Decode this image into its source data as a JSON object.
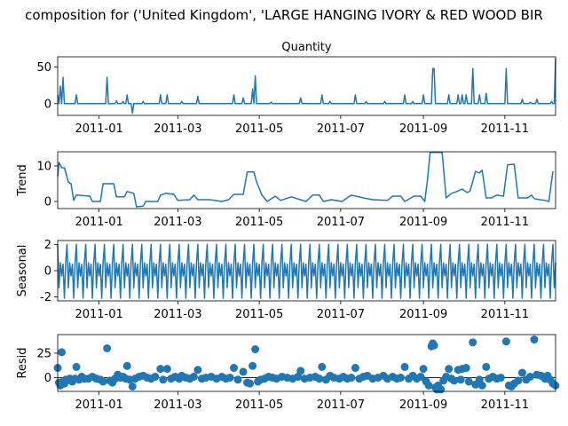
{
  "figure_title": "composition for ('United Kingdom', 'LARGE HANGING IVORY & RED WOOD BIR",
  "colors": {
    "series": "#1f77b4",
    "axis": "#000000",
    "resid_zero": "#000000"
  },
  "chart_data": [
    {
      "type": "line",
      "panel": "observed",
      "title": "Quantity",
      "ylabel": "",
      "xlim": [
        "2010-12-01",
        "2011-12-09"
      ],
      "ylim": [
        -16,
        64
      ],
      "yticks": [
        0,
        50
      ],
      "xticks": [
        "2011-01",
        "2011-03",
        "2011-05",
        "2011-07",
        "2011-09",
        "2011-11"
      ],
      "spikes": [
        [
          "2010-12-01",
          12
        ],
        [
          "2010-12-03",
          24
        ],
        [
          "2010-12-05",
          36
        ],
        [
          "2010-12-15",
          12
        ],
        [
          "2011-01-07",
          36
        ],
        [
          "2011-01-14",
          4
        ],
        [
          "2011-01-19",
          3
        ],
        [
          "2011-01-22",
          12
        ],
        [
          "2011-01-26",
          -13
        ],
        [
          "2011-02-03",
          3
        ],
        [
          "2011-02-16",
          12
        ],
        [
          "2011-02-21",
          12
        ],
        [
          "2011-03-04",
          3
        ],
        [
          "2011-03-16",
          10
        ],
        [
          "2011-04-12",
          12
        ],
        [
          "2011-04-19",
          8
        ],
        [
          "2011-04-26",
          20
        ],
        [
          "2011-04-28",
          38
        ],
        [
          "2011-05-10",
          2
        ],
        [
          "2011-06-01",
          8
        ],
        [
          "2011-06-17",
          12
        ],
        [
          "2011-06-23",
          3
        ],
        [
          "2011-07-12",
          12
        ],
        [
          "2011-07-20",
          3
        ],
        [
          "2011-08-03",
          3
        ],
        [
          "2011-08-18",
          12
        ],
        [
          "2011-08-24",
          3
        ],
        [
          "2011-09-01",
          12
        ],
        [
          "2011-09-08",
          48
        ],
        [
          "2011-09-09",
          48
        ],
        [
          "2011-09-20",
          12
        ],
        [
          "2011-09-27",
          12
        ],
        [
          "2011-09-30",
          12
        ],
        [
          "2011-10-03",
          12
        ],
        [
          "2011-10-08",
          48
        ],
        [
          "2011-10-13",
          12
        ],
        [
          "2011-10-18",
          14
        ],
        [
          "2011-11-02",
          48
        ],
        [
          "2011-11-14",
          6
        ],
        [
          "2011-11-20",
          2
        ],
        [
          "2011-11-25",
          6
        ],
        [
          "2011-12-06",
          3
        ],
        [
          "2011-12-09",
          62
        ]
      ]
    },
    {
      "type": "line",
      "panel": "trend",
      "title": "",
      "ylabel": "Trend",
      "xlim": [
        "2010-12-01",
        "2011-12-09"
      ],
      "ylim": [
        -2,
        14
      ],
      "yticks": [
        0,
        10
      ],
      "xticks": [
        "2011-01",
        "2011-03",
        "2011-05",
        "2011-07",
        "2011-09",
        "2011-11"
      ],
      "points": [
        [
          "2010-12-01",
          7
        ],
        [
          "2010-12-02",
          11
        ],
        [
          "2010-12-04",
          9.5
        ],
        [
          "2010-12-06",
          9.5
        ],
        [
          "2010-12-09",
          5.5
        ],
        [
          "2010-12-11",
          5
        ],
        [
          "2010-12-13",
          0.3
        ],
        [
          "2010-12-15",
          1.8
        ],
        [
          "2010-12-25",
          1.5
        ],
        [
          "2010-12-27",
          0
        ],
        [
          "2011-01-02",
          0
        ],
        [
          "2011-01-04",
          5
        ],
        [
          "2011-01-12",
          5
        ],
        [
          "2011-01-14",
          1.3
        ],
        [
          "2011-01-20",
          1.3
        ],
        [
          "2011-01-22",
          2.8
        ],
        [
          "2011-01-27",
          2.3
        ],
        [
          "2011-01-29",
          -1.5
        ],
        [
          "2011-02-03",
          -1.3
        ],
        [
          "2011-02-05",
          0
        ],
        [
          "2011-02-14",
          0
        ],
        [
          "2011-02-16",
          1.8
        ],
        [
          "2011-02-20",
          2.3
        ],
        [
          "2011-02-26",
          2
        ],
        [
          "2011-03-01",
          0.3
        ],
        [
          "2011-03-10",
          0.5
        ],
        [
          "2011-03-13",
          1.8
        ],
        [
          "2011-03-16",
          0.5
        ],
        [
          "2011-03-25",
          0.5
        ],
        [
          "2011-04-03",
          0
        ],
        [
          "2011-04-08",
          0.5
        ],
        [
          "2011-04-12",
          2
        ],
        [
          "2011-04-19",
          2
        ],
        [
          "2011-04-22",
          8.3
        ],
        [
          "2011-04-27",
          8.3
        ],
        [
          "2011-04-29",
          5.5
        ],
        [
          "2011-05-03",
          1.8
        ],
        [
          "2011-05-07",
          0
        ],
        [
          "2011-05-13",
          1.5
        ],
        [
          "2011-05-17",
          0.3
        ],
        [
          "2011-05-25",
          1.3
        ],
        [
          "2011-06-05",
          0
        ],
        [
          "2011-06-10",
          1.8
        ],
        [
          "2011-06-15",
          1.8
        ],
        [
          "2011-06-18",
          0
        ],
        [
          "2011-06-24",
          0.5
        ],
        [
          "2011-07-02",
          0
        ],
        [
          "2011-07-09",
          1.8
        ],
        [
          "2011-07-18",
          1
        ],
        [
          "2011-07-25",
          0.5
        ],
        [
          "2011-08-05",
          0.3
        ],
        [
          "2011-08-09",
          1.5
        ],
        [
          "2011-08-15",
          1.5
        ],
        [
          "2011-08-18",
          0
        ],
        [
          "2011-08-25",
          1.5
        ],
        [
          "2011-08-30",
          1.5
        ],
        [
          "2011-09-02",
          0
        ],
        [
          "2011-09-04",
          6
        ],
        [
          "2011-09-06",
          13.8
        ],
        [
          "2011-09-15",
          13.8
        ],
        [
          "2011-09-18",
          1
        ],
        [
          "2011-09-22",
          2.3
        ],
        [
          "2011-09-26",
          2.8
        ],
        [
          "2011-09-30",
          3.5
        ],
        [
          "2011-10-04",
          2.5
        ],
        [
          "2011-10-06",
          3
        ],
        [
          "2011-10-10",
          8.5
        ],
        [
          "2011-10-13",
          8
        ],
        [
          "2011-10-15",
          8.8
        ],
        [
          "2011-10-18",
          1
        ],
        [
          "2011-10-22",
          1
        ],
        [
          "2011-10-26",
          1.8
        ],
        [
          "2011-10-31",
          1.5
        ],
        [
          "2011-11-03",
          10.3
        ],
        [
          "2011-11-08",
          10.5
        ],
        [
          "2011-11-11",
          1
        ],
        [
          "2011-11-18",
          1
        ],
        [
          "2011-11-21",
          1.8
        ],
        [
          "2011-11-23",
          0.8
        ],
        [
          "2011-11-27",
          0.5
        ],
        [
          "2011-12-01",
          0.3
        ],
        [
          "2011-12-04",
          0
        ],
        [
          "2011-12-07",
          8.5
        ]
      ]
    },
    {
      "type": "line",
      "panel": "seasonal",
      "title": "",
      "ylabel": "Seasonal",
      "xlim": [
        "2010-12-01",
        "2011-12-09"
      ],
      "ylim": [
        -2.3,
        2.3
      ],
      "yticks": [
        -2,
        0,
        2
      ],
      "xticks": [
        "2011-01",
        "2011-03",
        "2011-05",
        "2011-07",
        "2011-09",
        "2011-11"
      ],
      "period_days": 7,
      "weekly_pattern": [
        2.0,
        -1.3,
        0.6,
        -0.4,
        0.5,
        -2.1,
        0.6
      ]
    },
    {
      "type": "scatter",
      "panel": "resid",
      "title": "",
      "ylabel": "Resid",
      "xlim": [
        "2010-12-01",
        "2011-12-09"
      ],
      "ylim": [
        -14,
        44
      ],
      "yticks": [
        0,
        25
      ],
      "xticks": [
        "2011-01",
        "2011-03",
        "2011-05",
        "2011-07",
        "2011-09",
        "2011-11"
      ],
      "points": [
        [
          "2010-12-01",
          10
        ],
        [
          "2010-12-02",
          -5
        ],
        [
          "2010-12-03",
          -8
        ],
        [
          "2010-12-04",
          26
        ],
        [
          "2010-12-05",
          -4
        ],
        [
          "2010-12-06",
          -6
        ],
        [
          "2010-12-07",
          -2
        ],
        [
          "2010-12-08",
          -3
        ],
        [
          "2010-12-10",
          -1
        ],
        [
          "2010-12-12",
          -4
        ],
        [
          "2010-12-14",
          -1
        ],
        [
          "2010-12-15",
          11
        ],
        [
          "2010-12-17",
          -2
        ],
        [
          "2010-12-19",
          1
        ],
        [
          "2010-12-21",
          -1
        ],
        [
          "2010-12-24",
          -1
        ],
        [
          "2010-12-27",
          1
        ],
        [
          "2010-12-30",
          -1
        ],
        [
          "2011-01-02",
          -2
        ],
        [
          "2011-01-04",
          -4
        ],
        [
          "2011-01-07",
          30
        ],
        [
          "2011-01-09",
          -3
        ],
        [
          "2011-01-11",
          -5
        ],
        [
          "2011-01-13",
          -1
        ],
        [
          "2011-01-15",
          3
        ],
        [
          "2011-01-17",
          0
        ],
        [
          "2011-01-19",
          1
        ],
        [
          "2011-01-21",
          -1
        ],
        [
          "2011-01-22",
          12
        ],
        [
          "2011-01-24",
          -2
        ],
        [
          "2011-01-26",
          -9
        ],
        [
          "2011-01-28",
          -1
        ],
        [
          "2011-01-31",
          1
        ],
        [
          "2011-02-03",
          2
        ],
        [
          "2011-02-06",
          0
        ],
        [
          "2011-02-09",
          -1
        ],
        [
          "2011-02-12",
          1
        ],
        [
          "2011-02-16",
          9
        ],
        [
          "2011-02-18",
          -2
        ],
        [
          "2011-02-21",
          9
        ],
        [
          "2011-02-24",
          -1
        ],
        [
          "2011-02-27",
          1
        ],
        [
          "2011-03-02",
          -1
        ],
        [
          "2011-03-04",
          2
        ],
        [
          "2011-03-07",
          0
        ],
        [
          "2011-03-10",
          -1
        ],
        [
          "2011-03-13",
          1
        ],
        [
          "2011-03-16",
          8
        ],
        [
          "2011-03-19",
          -1
        ],
        [
          "2011-03-22",
          0
        ],
        [
          "2011-03-26",
          1
        ],
        [
          "2011-03-30",
          -1
        ],
        [
          "2011-04-03",
          1
        ],
        [
          "2011-04-06",
          -1
        ],
        [
          "2011-04-09",
          0
        ],
        [
          "2011-04-12",
          10
        ],
        [
          "2011-04-15",
          -2
        ],
        [
          "2011-04-19",
          6
        ],
        [
          "2011-04-22",
          -5
        ],
        [
          "2011-04-24",
          -6
        ],
        [
          "2011-04-26",
          12
        ],
        [
          "2011-04-28",
          29
        ],
        [
          "2011-04-30",
          -4
        ],
        [
          "2011-05-02",
          -2
        ],
        [
          "2011-05-05",
          -1
        ],
        [
          "2011-05-08",
          1
        ],
        [
          "2011-05-11",
          0
        ],
        [
          "2011-05-14",
          -1
        ],
        [
          "2011-05-18",
          1
        ],
        [
          "2011-05-22",
          0
        ],
        [
          "2011-05-26",
          -1
        ],
        [
          "2011-05-30",
          1
        ],
        [
          "2011-06-01",
          7
        ],
        [
          "2011-06-04",
          -1
        ],
        [
          "2011-06-08",
          0
        ],
        [
          "2011-06-12",
          1
        ],
        [
          "2011-06-15",
          -1
        ],
        [
          "2011-06-17",
          11
        ],
        [
          "2011-06-20",
          -2
        ],
        [
          "2011-06-23",
          2
        ],
        [
          "2011-06-26",
          0
        ],
        [
          "2011-06-30",
          -1
        ],
        [
          "2011-07-03",
          1
        ],
        [
          "2011-07-06",
          -1
        ],
        [
          "2011-07-09",
          0
        ],
        [
          "2011-07-12",
          10
        ],
        [
          "2011-07-15",
          -1
        ],
        [
          "2011-07-18",
          1
        ],
        [
          "2011-07-21",
          2
        ],
        [
          "2011-07-25",
          -1
        ],
        [
          "2011-07-29",
          0
        ],
        [
          "2011-08-02",
          2
        ],
        [
          "2011-08-05",
          -1
        ],
        [
          "2011-08-09",
          1
        ],
        [
          "2011-08-12",
          -1
        ],
        [
          "2011-08-15",
          0
        ],
        [
          "2011-08-18",
          11
        ],
        [
          "2011-08-21",
          -1
        ],
        [
          "2011-08-24",
          2
        ],
        [
          "2011-08-27",
          -1
        ],
        [
          "2011-08-30",
          1
        ],
        [
          "2011-09-01",
          9
        ],
        [
          "2011-09-03",
          -4
        ],
        [
          "2011-09-05",
          -8
        ],
        [
          "2011-09-07",
          32
        ],
        [
          "2011-09-08",
          35
        ],
        [
          "2011-09-09",
          33
        ],
        [
          "2011-09-10",
          -10
        ],
        [
          "2011-09-11",
          -12
        ],
        [
          "2011-09-12",
          -8
        ],
        [
          "2011-09-14",
          -12
        ],
        [
          "2011-09-16",
          -3
        ],
        [
          "2011-09-18",
          1
        ],
        [
          "2011-09-20",
          9
        ],
        [
          "2011-09-22",
          -1
        ],
        [
          "2011-09-24",
          -3
        ],
        [
          "2011-09-27",
          8
        ],
        [
          "2011-09-29",
          -2
        ],
        [
          "2011-09-30",
          9
        ],
        [
          "2011-10-03",
          10
        ],
        [
          "2011-10-05",
          -4
        ],
        [
          "2011-10-08",
          36
        ],
        [
          "2011-10-10",
          -7
        ],
        [
          "2011-10-13",
          -2
        ],
        [
          "2011-10-15",
          -8
        ],
        [
          "2011-10-18",
          11
        ],
        [
          "2011-10-20",
          -1
        ],
        [
          "2011-10-23",
          1
        ],
        [
          "2011-10-26",
          -1
        ],
        [
          "2011-10-29",
          0
        ],
        [
          "2011-11-02",
          37
        ],
        [
          "2011-11-04",
          -8
        ],
        [
          "2011-11-06",
          -9
        ],
        [
          "2011-11-08",
          -6
        ],
        [
          "2011-11-11",
          -3
        ],
        [
          "2011-11-14",
          5
        ],
        [
          "2011-11-17",
          -2
        ],
        [
          "2011-11-20",
          1
        ],
        [
          "2011-11-23",
          39
        ],
        [
          "2011-11-25",
          3
        ],
        [
          "2011-11-28",
          2
        ],
        [
          "2011-12-01",
          -1
        ],
        [
          "2011-12-03",
          2
        ],
        [
          "2011-12-05",
          -2
        ],
        [
          "2011-12-07",
          -6
        ],
        [
          "2011-12-09",
          -8
        ]
      ]
    }
  ]
}
